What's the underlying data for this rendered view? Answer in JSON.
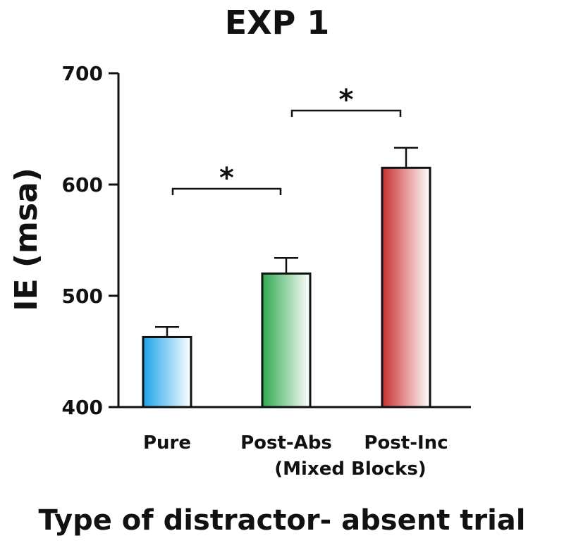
{
  "chart_data": {
    "type": "bar",
    "title": "EXP 1",
    "ylabel": "IE (msa)",
    "xlabel": "Type of distractor- absent trial",
    "categories": [
      "Pure",
      "Post-Abs",
      "Post-Inc"
    ],
    "group_label": "(Mixed Blocks)",
    "values": [
      463,
      520,
      615
    ],
    "errors": [
      9,
      14,
      18
    ],
    "colors": [
      "#1aa3e8",
      "#2fa84f",
      "#c8302f"
    ],
    "ylim": [
      400,
      700
    ],
    "yticks": [
      400,
      500,
      600,
      700
    ],
    "ytick_labels": [
      "400",
      "500",
      "600",
      "700"
    ],
    "grid": false,
    "significance": [
      {
        "from": 0,
        "to": 1,
        "label": "*"
      },
      {
        "from": 1,
        "to": 2,
        "label": "*"
      }
    ]
  }
}
